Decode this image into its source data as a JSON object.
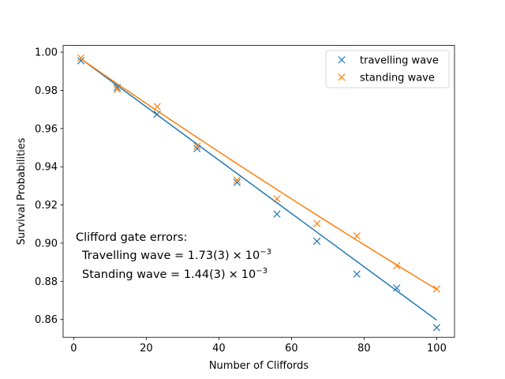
{
  "chart_data": {
    "type": "scatter",
    "xlabel": "Number of Cliffords",
    "ylabel": "Survival Probabilities",
    "xlim": [
      -2.9,
      104.9
    ],
    "ylim": [
      0.8507,
      1.0035
    ],
    "xticks": [
      0,
      20,
      40,
      60,
      80,
      100
    ],
    "yticks": [
      0.86,
      0.88,
      0.9,
      0.92,
      0.94,
      0.96,
      0.98,
      1.0
    ],
    "xtick_labels": [
      "0",
      "20",
      "40",
      "60",
      "80",
      "100"
    ],
    "ytick_labels": [
      "0.86",
      "0.88",
      "0.90",
      "0.92",
      "0.94",
      "0.96",
      "0.98",
      "1.00"
    ],
    "grid": false,
    "legend_position": "top-right",
    "series": [
      {
        "name": "travelling wave",
        "color": "#1f77b4",
        "marker": "x",
        "x": [
          2,
          12,
          23,
          34,
          45,
          56,
          67,
          78,
          89,
          100
        ],
        "y": [
          0.9955,
          0.9815,
          0.9675,
          0.9495,
          0.9318,
          0.9152,
          0.901,
          0.8838,
          0.8765,
          0.8558
        ],
        "fit": {
          "x0": 2,
          "y0": 0.9965,
          "x1": 100,
          "y1": 0.8597,
          "shape": "linear"
        }
      },
      {
        "name": "standing wave",
        "color": "#ff7f0e",
        "marker": "x",
        "x": [
          2,
          12,
          23,
          34,
          45,
          56,
          67,
          78,
          89,
          100
        ],
        "y": [
          0.997,
          0.9805,
          0.9715,
          0.9508,
          0.933,
          0.9232,
          0.9102,
          0.9038,
          0.8882,
          0.876
        ],
        "fit": {
          "x0": 2,
          "y0": 0.9965,
          "x1": 100,
          "y1": 0.8758,
          "decay_rate": 0.00144,
          "shape": "exponential"
        }
      }
    ],
    "annotation": {
      "heading": "Clifford gate errors:",
      "line1_prefix": "Travelling wave = 1.73(3)",
      "line2_prefix": "Standing wave = 1.44(3)",
      "times_sign": "×",
      "power_base": "10",
      "exponent": "−3"
    }
  }
}
